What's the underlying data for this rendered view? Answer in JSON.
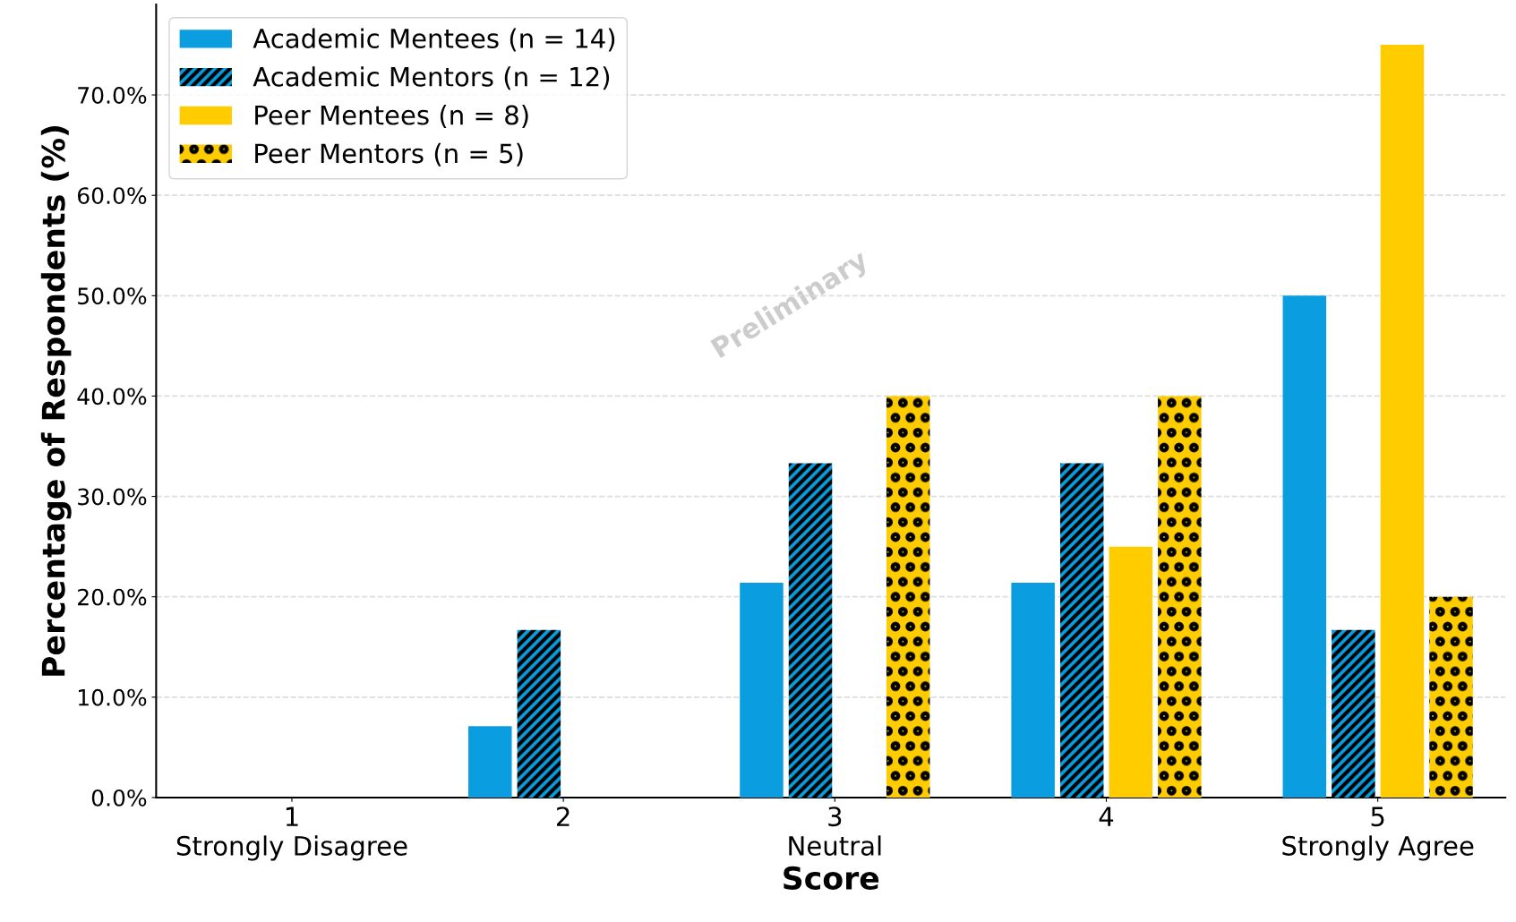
{
  "chart_data": {
    "type": "bar",
    "xlabel": "Score",
    "ylabel": "Percentage of Respondents (%)",
    "categories": [
      "1\nStrongly Disagree",
      "2",
      "3\nNeutral",
      "4",
      "5\nStrongly Agree"
    ],
    "series": [
      {
        "name": "Academic Mentees (n = 14)",
        "color": "#0a9ee0",
        "values": [
          0,
          7.1,
          21.4,
          21.4,
          50.0
        ]
      },
      {
        "name": "Academic Mentors (n = 12)",
        "color": "#0a9ee0",
        "values": [
          0,
          16.7,
          33.3,
          33.3,
          16.7
        ]
      },
      {
        "name": "Peer Mentees (n = 8)",
        "color": "#ffcc00",
        "values": [
          0,
          0,
          0,
          25.0,
          75.0
        ]
      },
      {
        "name": "Peer Mentors (n = 5)",
        "color": "#ffcc00",
        "values": [
          0,
          0,
          40.0,
          40.0,
          20.0
        ]
      }
    ],
    "ylim": [
      0,
      79
    ],
    "yticks": [
      {
        "value": 0,
        "label": "0.0%"
      },
      {
        "value": 10,
        "label": "10.0%"
      },
      {
        "value": 20,
        "label": "20.0%"
      },
      {
        "value": 30,
        "label": "30.0%"
      },
      {
        "value": 40,
        "label": "40.0%"
      },
      {
        "value": 50,
        "label": "50.0%"
      },
      {
        "value": 60,
        "label": "60.0%"
      },
      {
        "value": 70,
        "label": "70.0%"
      }
    ],
    "grid": "y",
    "legend": "top left",
    "annotations": [
      "Preliminary"
    ]
  }
}
